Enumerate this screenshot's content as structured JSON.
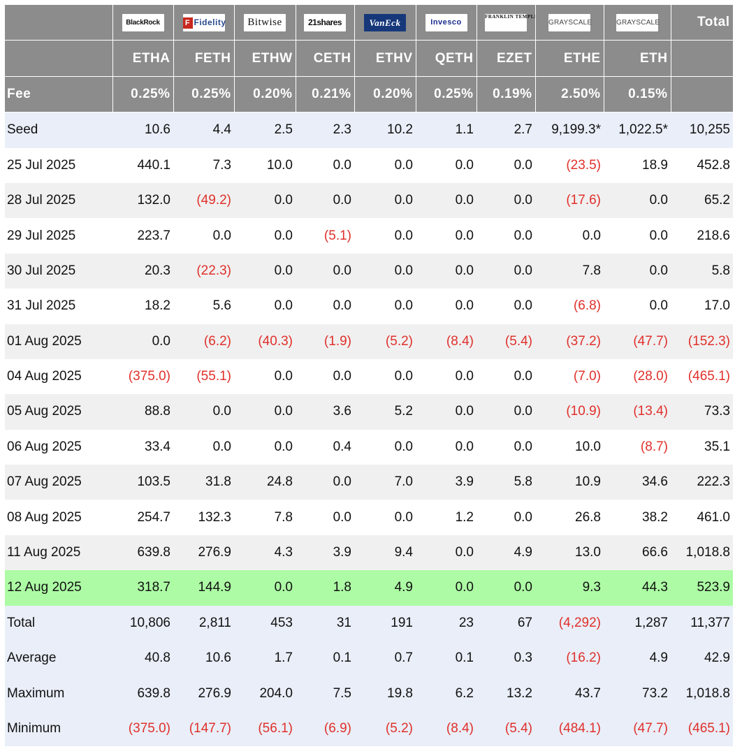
{
  "issuers": [
    {
      "logo": "BlackRock",
      "ticker": "ETHA",
      "fee": "0.25%"
    },
    {
      "logo": "Fidelity",
      "ticker": "FETH",
      "fee": "0.25%"
    },
    {
      "logo": "Bitwise",
      "ticker": "ETHW",
      "fee": "0.20%"
    },
    {
      "logo": "21shares",
      "ticker": "CETH",
      "fee": "0.21%"
    },
    {
      "logo": "VanEck",
      "ticker": "ETHV",
      "fee": "0.20%"
    },
    {
      "logo": "Invesco",
      "ticker": "QETH",
      "fee": "0.25%"
    },
    {
      "logo": "FRANKLIN TEMPLETON",
      "ticker": "EZET",
      "fee": "0.19%"
    },
    {
      "logo": "GRAYSCALE",
      "ticker": "ETHE",
      "fee": "2.50%"
    },
    {
      "logo": "GRAYSCALE",
      "ticker": "ETH",
      "fee": "0.15%"
    }
  ],
  "header": {
    "total_label": "Total",
    "fee_label": "Fee"
  },
  "rows": [
    {
      "label": "Seed",
      "style": "blue",
      "values": [
        "10.6",
        "4.4",
        "2.5",
        "2.3",
        "10.2",
        "1.1",
        "2.7",
        "9,199.3*",
        "1,022.5*",
        "10,255"
      ]
    },
    {
      "label": "25 Jul 2025",
      "style": "white",
      "values": [
        "440.1",
        "7.3",
        "10.0",
        "0.0",
        "0.0",
        "0.0",
        "0.0",
        "(23.5)",
        "18.9",
        "452.8"
      ]
    },
    {
      "label": "28 Jul 2025",
      "style": "grey",
      "values": [
        "132.0",
        "(49.2)",
        "0.0",
        "0.0",
        "0.0",
        "0.0",
        "0.0",
        "(17.6)",
        "0.0",
        "65.2"
      ]
    },
    {
      "label": "29 Jul 2025",
      "style": "white",
      "values": [
        "223.7",
        "0.0",
        "0.0",
        "(5.1)",
        "0.0",
        "0.0",
        "0.0",
        "0.0",
        "0.0",
        "218.6"
      ]
    },
    {
      "label": "30 Jul 2025",
      "style": "grey",
      "values": [
        "20.3",
        "(22.3)",
        "0.0",
        "0.0",
        "0.0",
        "0.0",
        "0.0",
        "7.8",
        "0.0",
        "5.8"
      ]
    },
    {
      "label": "31 Jul 2025",
      "style": "white",
      "values": [
        "18.2",
        "5.6",
        "0.0",
        "0.0",
        "0.0",
        "0.0",
        "0.0",
        "(6.8)",
        "0.0",
        "17.0"
      ]
    },
    {
      "label": "01 Aug 2025",
      "style": "grey",
      "values": [
        "0.0",
        "(6.2)",
        "(40.3)",
        "(1.9)",
        "(5.2)",
        "(8.4)",
        "(5.4)",
        "(37.2)",
        "(47.7)",
        "(152.3)"
      ]
    },
    {
      "label": "04 Aug 2025",
      "style": "white",
      "values": [
        "(375.0)",
        "(55.1)",
        "0.0",
        "0.0",
        "0.0",
        "0.0",
        "0.0",
        "(7.0)",
        "(28.0)",
        "(465.1)"
      ]
    },
    {
      "label": "05 Aug 2025",
      "style": "grey",
      "values": [
        "88.8",
        "0.0",
        "0.0",
        "3.6",
        "5.2",
        "0.0",
        "0.0",
        "(10.9)",
        "(13.4)",
        "73.3"
      ]
    },
    {
      "label": "06 Aug 2025",
      "style": "white",
      "values": [
        "33.4",
        "0.0",
        "0.0",
        "0.4",
        "0.0",
        "0.0",
        "0.0",
        "10.0",
        "(8.7)",
        "35.1"
      ]
    },
    {
      "label": "07 Aug 2025",
      "style": "grey",
      "values": [
        "103.5",
        "31.8",
        "24.8",
        "0.0",
        "7.0",
        "3.9",
        "5.8",
        "10.9",
        "34.6",
        "222.3"
      ]
    },
    {
      "label": "08 Aug 2025",
      "style": "white",
      "values": [
        "254.7",
        "132.3",
        "7.8",
        "0.0",
        "0.0",
        "1.2",
        "0.0",
        "26.8",
        "38.2",
        "461.0"
      ]
    },
    {
      "label": "11 Aug 2025",
      "style": "grey",
      "values": [
        "639.8",
        "276.9",
        "4.3",
        "3.9",
        "9.4",
        "0.0",
        "4.9",
        "13.0",
        "66.6",
        "1,018.8"
      ]
    },
    {
      "label": "12 Aug 2025",
      "style": "green",
      "values": [
        "318.7",
        "144.9",
        "0.0",
        "1.8",
        "4.9",
        "0.0",
        "0.0",
        "9.3",
        "44.3",
        "523.9"
      ]
    },
    {
      "label": "Total",
      "style": "blue",
      "values": [
        "10,806",
        "2,811",
        "453",
        "31",
        "191",
        "23",
        "67",
        "(4,292)",
        "1,287",
        "11,377"
      ]
    },
    {
      "label": "Average",
      "style": "blue",
      "values": [
        "40.8",
        "10.6",
        "1.7",
        "0.1",
        "0.7",
        "0.1",
        "0.3",
        "(16.2)",
        "4.9",
        "42.9"
      ]
    },
    {
      "label": "Maximum",
      "style": "blue",
      "values": [
        "639.8",
        "276.9",
        "204.0",
        "7.5",
        "19.8",
        "6.2",
        "13.2",
        "43.7",
        "73.2",
        "1,018.8"
      ]
    },
    {
      "label": "Minimum",
      "style": "blue",
      "values": [
        "(375.0)",
        "(147.7)",
        "(56.1)",
        "(6.9)",
        "(5.2)",
        "(8.4)",
        "(5.4)",
        "(484.1)",
        "(47.7)",
        "(465.1)"
      ]
    }
  ],
  "colors": {
    "header_bg": "#8c8c8c",
    "negative": "#e0302b",
    "highlight_row": "#adfca5",
    "summary_row": "#e9eef8",
    "alt_row": "#f0f0f0"
  }
}
